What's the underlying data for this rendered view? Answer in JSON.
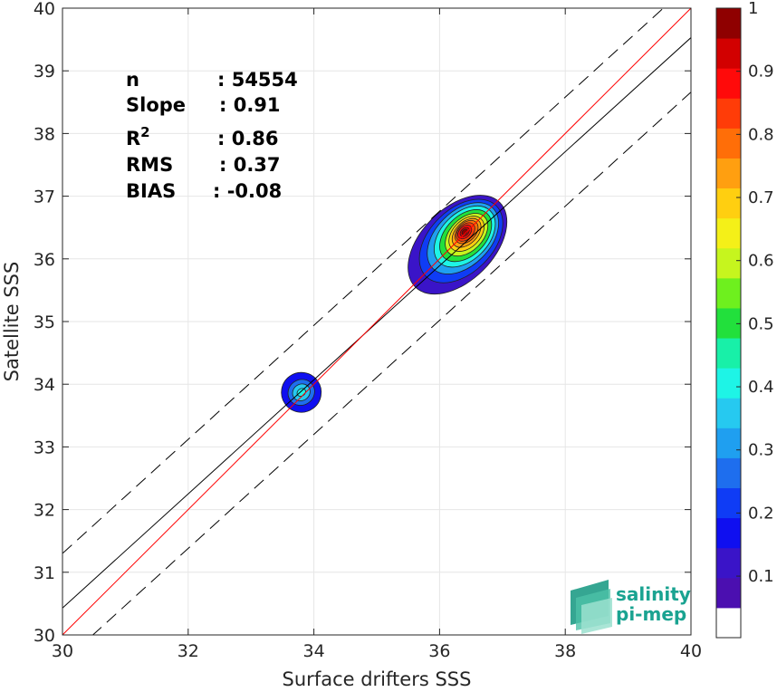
{
  "chart_data": {
    "type": "heatmap",
    "xlabel": "Surface drifters SSS",
    "ylabel": "Satellite SSS",
    "xlim": [
      30,
      40
    ],
    "ylim": [
      30,
      40
    ],
    "xticks": [
      "30",
      "32",
      "34",
      "36",
      "38",
      "40"
    ],
    "yticks": [
      "30",
      "31",
      "32",
      "33",
      "34",
      "35",
      "36",
      "37",
      "38",
      "39",
      "40"
    ],
    "grid": true,
    "stats": [
      {
        "label": "n",
        "value": ": 54554"
      },
      {
        "label": "Slope",
        "value": ": 0.91"
      },
      {
        "label": "R",
        "sup": "2",
        "value": ": 0.86"
      },
      {
        "label": "RMS",
        "value": ": 0.37"
      },
      {
        "label": "BIAS",
        "value": ": -0.08"
      }
    ],
    "reference_lines": {
      "identity": {
        "slope": 1,
        "intercept": 0,
        "color": "#ff0000"
      },
      "regression": {
        "slope": 0.91,
        "intercept": 3.13,
        "color": "#000000"
      },
      "bounds": [
        {
          "slope": 0.91,
          "intercept": 4.0,
          "style": "dashed"
        },
        {
          "slope": 0.91,
          "intercept": 2.26,
          "style": "dashed"
        }
      ]
    },
    "density_clusters": [
      {
        "center": [
          36.4,
          36.4
        ],
        "peak": 1.0,
        "extent": "35.75 to 37.1 x, 35.8 to 37.0 y"
      },
      {
        "center": [
          33.8,
          33.87
        ],
        "peak": 0.4,
        "extent": "33.45 to 34.15 x, 33.5 to 34.2 y"
      }
    ],
    "colorbar": {
      "levels": [
        0.05,
        0.1,
        0.15,
        0.2,
        0.25,
        0.3,
        0.35,
        0.4,
        0.45,
        0.5,
        0.55,
        0.6,
        0.65,
        0.7,
        0.75,
        0.8,
        0.85,
        0.9,
        0.95,
        1.0
      ],
      "colors": [
        "#ffffff",
        "#4b0fb0",
        "#3a14c8",
        "#0f0ff0",
        "#0f3cf5",
        "#1e6eee",
        "#1f9ff0",
        "#26c9f0",
        "#1ef4e6",
        "#18f0a8",
        "#22e03c",
        "#6ef01e",
        "#c6f51e",
        "#f4f018",
        "#ffcf10",
        "#ff9f10",
        "#ff6e08",
        "#ff3c08",
        "#ff0a0a",
        "#d20000",
        "#8f0000"
      ],
      "ticks": [
        "0.1",
        "0.2",
        "0.3",
        "0.4",
        "0.5",
        "0.6",
        "0.7",
        "0.8",
        "0.9",
        "1"
      ]
    }
  },
  "logo": {
    "line1": "salinity",
    "line2": "pi-mep"
  }
}
